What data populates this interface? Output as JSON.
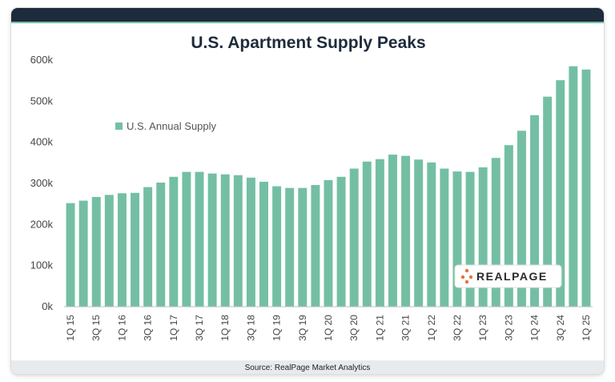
{
  "chart_data": {
    "type": "bar",
    "title": "U.S. Apartment Supply Peaks",
    "xlabel": "",
    "ylabel": "",
    "ylim": [
      0,
      600000
    ],
    "yticks": [
      0,
      100000,
      200000,
      300000,
      400000,
      500000,
      600000
    ],
    "ytick_labels": [
      "0k",
      "100k",
      "200k",
      "300k",
      "400k",
      "500k",
      "600k"
    ],
    "grid": false,
    "legend_position": "upper-left",
    "categories": [
      "1Q 15",
      "2Q 15",
      "3Q 15",
      "4Q 15",
      "1Q 16",
      "2Q 16",
      "3Q 16",
      "4Q 16",
      "1Q 17",
      "2Q 17",
      "3Q 17",
      "4Q 17",
      "1Q 18",
      "2Q 18",
      "3Q 18",
      "4Q 18",
      "1Q 19",
      "2Q 19",
      "3Q 19",
      "4Q 19",
      "1Q 20",
      "2Q 20",
      "3Q 20",
      "4Q 20",
      "1Q 21",
      "2Q 21",
      "3Q 21",
      "4Q 21",
      "1Q 22",
      "2Q 22",
      "3Q 22",
      "4Q 22",
      "1Q 23",
      "2Q 23",
      "3Q 23",
      "4Q 23",
      "1Q 24",
      "2Q 24",
      "3Q 24",
      "4Q 24",
      "1Q 25"
    ],
    "xtick_labels": [
      "1Q 15",
      "3Q 15",
      "1Q 16",
      "3Q 16",
      "1Q 17",
      "3Q 17",
      "1Q 18",
      "3Q 18",
      "1Q 19",
      "3Q 19",
      "1Q 20",
      "3Q 20",
      "1Q 21",
      "3Q 21",
      "1Q 22",
      "3Q 22",
      "1Q 23",
      "3Q 23",
      "1Q 24",
      "3Q 24",
      "1Q 25"
    ],
    "series": [
      {
        "name": "U.S. Annual Supply",
        "color": "#74bfa4",
        "values": [
          252000,
          258000,
          267000,
          272000,
          276000,
          277000,
          291000,
          302000,
          316000,
          328000,
          328000,
          324000,
          322000,
          320000,
          314000,
          304000,
          293000,
          289000,
          289000,
          296000,
          308000,
          316000,
          336000,
          353000,
          359000,
          370000,
          367000,
          358000,
          351000,
          336000,
          329000,
          328000,
          339000,
          362000,
          393000,
          428000,
          466000,
          511000,
          551000,
          585000,
          577000
        ]
      }
    ]
  },
  "legend": {
    "label": "U.S. Annual Supply"
  },
  "logo": {
    "text": "REALPAGE"
  },
  "source": "Source: RealPage Market Analytics",
  "colors": {
    "bar": "#74bfa4",
    "title": "#1e2b3c",
    "header": "#1e2b3c",
    "logo_dots": "#e8703a"
  }
}
